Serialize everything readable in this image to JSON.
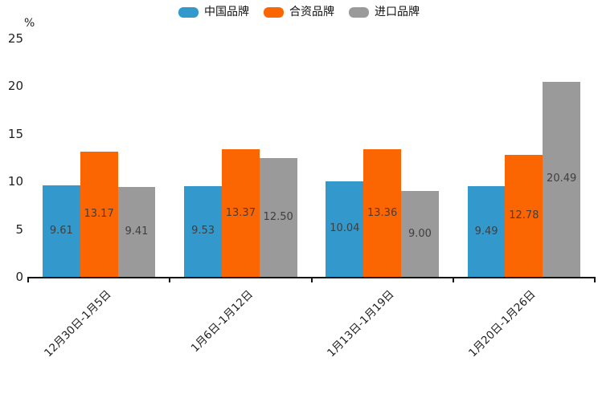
{
  "chart_data": {
    "type": "bar",
    "unit_label": "%",
    "categories": [
      "12月30日-1月5日",
      "1月6日-1月12日",
      "1月13日-1月19日",
      "1月20日-1月26日"
    ],
    "series": [
      {
        "name": "中国品牌",
        "color": "#3398CB",
        "values": [
          9.61,
          9.53,
          10.04,
          9.49
        ]
      },
      {
        "name": "合资品牌",
        "color": "#FC6602",
        "values": [
          13.17,
          13.37,
          13.36,
          12.78
        ]
      },
      {
        "name": "进口品牌",
        "color": "#9A9A9A",
        "values": [
          9.41,
          12.5,
          9.0,
          20.49
        ]
      }
    ],
    "y_ticks": [
      0,
      5,
      10,
      15,
      20,
      25
    ],
    "ylim": [
      0,
      25
    ],
    "value_labels": true,
    "value_label_decimals": 2,
    "legend_position": "top",
    "grid": false,
    "colors": {
      "axis": "#141414",
      "tick_label": "#1f1f1f",
      "value_label": "#3f3f3f",
      "background": "#ffffff"
    }
  }
}
